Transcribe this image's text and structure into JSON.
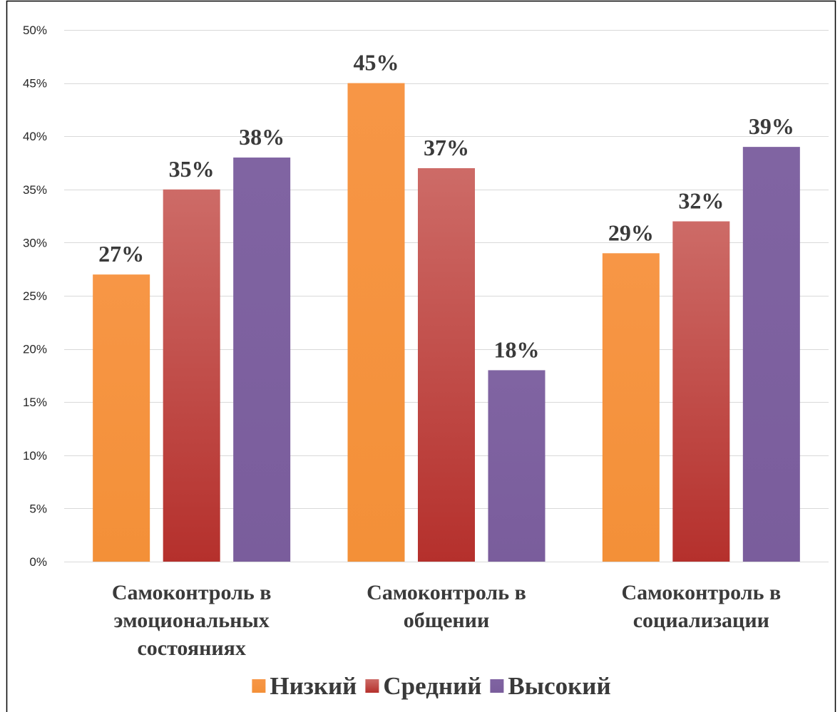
{
  "chart_data": {
    "type": "bar",
    "categories": [
      "Самоконтроль в эмоциональных состояниях",
      "Самоконтроль в общении",
      "Самоконтроль в социализации"
    ],
    "series": [
      {
        "name": "Низкий",
        "values": [
          27,
          45,
          29
        ],
        "color": "#F79646",
        "color_dark": "#F39038"
      },
      {
        "name": "Средний",
        "values": [
          35,
          37,
          32
        ],
        "color": "#CD6B67",
        "color_dark": "#B5302C"
      },
      {
        "name": "Высокий",
        "values": [
          38,
          18,
          39
        ],
        "color": "#8064A2",
        "color_dark": "#7A5D9C"
      }
    ],
    "ylim": [
      0,
      50
    ],
    "yticks": [
      0,
      5,
      10,
      15,
      20,
      25,
      30,
      35,
      40,
      45,
      50
    ],
    "value_suffix": "%",
    "data_labels": true,
    "grid": true,
    "legend": "bottom"
  }
}
